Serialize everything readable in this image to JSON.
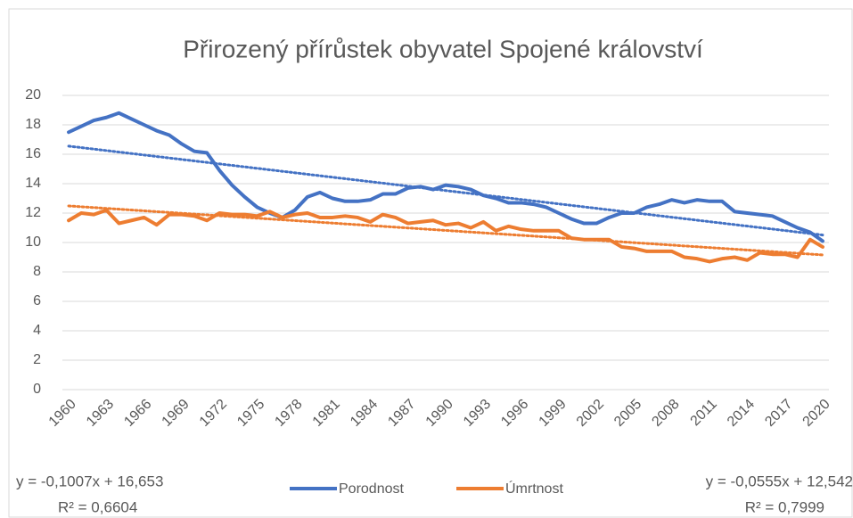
{
  "chart_data": {
    "type": "line",
    "title": "Přirozený přírůstek obyvatel Spojené království",
    "categories": [
      "1960",
      null,
      null,
      "1963",
      null,
      null,
      "1966",
      null,
      null,
      "1969",
      null,
      null,
      "1972",
      null,
      null,
      "1975",
      null,
      null,
      "1978",
      null,
      null,
      "1981",
      null,
      null,
      "1984",
      null,
      null,
      "1987",
      null,
      null,
      "1990",
      null,
      null,
      "1993",
      null,
      null,
      "1996",
      null,
      null,
      "1999",
      null,
      null,
      "2002",
      null,
      null,
      "2005",
      null,
      null,
      "2008",
      null,
      null,
      "2011",
      null,
      null,
      "2014",
      null,
      null,
      "2017",
      null,
      null,
      "2020"
    ],
    "series": [
      {
        "name": "Porodnost",
        "color": "#4472c4",
        "values": [
          17.5,
          17.9,
          18.3,
          18.5,
          18.8,
          18.4,
          18.0,
          17.6,
          17.3,
          16.7,
          16.2,
          16.1,
          14.9,
          13.9,
          13.1,
          12.4,
          12.0,
          11.7,
          12.2,
          13.1,
          13.4,
          13.0,
          12.8,
          12.8,
          12.9,
          13.3,
          13.3,
          13.7,
          13.8,
          13.6,
          13.9,
          13.8,
          13.6,
          13.2,
          13.0,
          12.7,
          12.7,
          12.6,
          12.4,
          12.0,
          11.6,
          11.3,
          11.3,
          11.7,
          12.0,
          12.0,
          12.4,
          12.6,
          12.9,
          12.7,
          12.9,
          12.8,
          12.8,
          12.1,
          12.0,
          11.9,
          11.8,
          11.4,
          11.0,
          10.7,
          10.1
        ],
        "trendline": {
          "slope": -0.1007,
          "intercept": 16.653,
          "equation": "y = -0,1007x + 16,653",
          "r2": "R² = 0,6604"
        }
      },
      {
        "name": "Úmrtnost",
        "color": "#ed7d31",
        "values": [
          11.5,
          12.0,
          11.9,
          12.2,
          11.3,
          11.5,
          11.7,
          11.2,
          11.9,
          11.9,
          11.8,
          11.5,
          12.0,
          11.9,
          11.9,
          11.8,
          12.1,
          11.7,
          11.9,
          12.0,
          11.7,
          11.7,
          11.8,
          11.7,
          11.4,
          11.9,
          11.7,
          11.3,
          11.4,
          11.5,
          11.2,
          11.3,
          11.0,
          11.4,
          10.8,
          11.1,
          10.9,
          10.8,
          10.8,
          10.8,
          10.3,
          10.2,
          10.2,
          10.2,
          9.7,
          9.6,
          9.4,
          9.4,
          9.4,
          9.0,
          8.9,
          8.7,
          8.9,
          9.0,
          8.8,
          9.3,
          9.2,
          9.2,
          9.0,
          10.2,
          9.7
        ],
        "trendline": {
          "slope": -0.0555,
          "intercept": 12.542,
          "equation": "y = -0,0555x + 12,542",
          "r2": "R² = 0,7999"
        }
      }
    ],
    "ylim": [
      0,
      20
    ],
    "yticks": [
      0,
      2,
      4,
      6,
      8,
      10,
      12,
      14,
      16,
      18,
      20
    ],
    "grid": true,
    "legend": "bottom"
  }
}
